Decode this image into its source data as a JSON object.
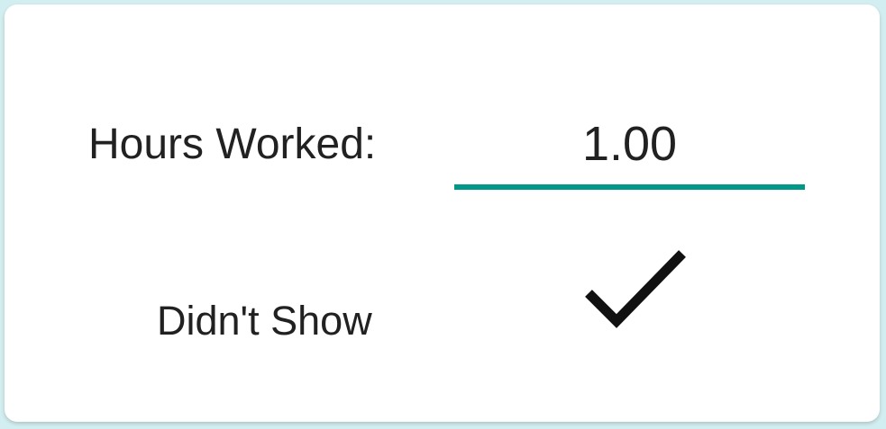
{
  "form": {
    "hours_worked_label": "Hours Worked:",
    "hours_worked_value": "1.00",
    "didnt_show_label": "Didn't Show",
    "didnt_show_checked": true,
    "didnt_show_icon": "checkmark-icon"
  },
  "colors": {
    "accent": "#009688",
    "text": "#212121",
    "card_background": "#ffffff",
    "page_background": "#d3eef0",
    "checkmark": "#111111"
  }
}
